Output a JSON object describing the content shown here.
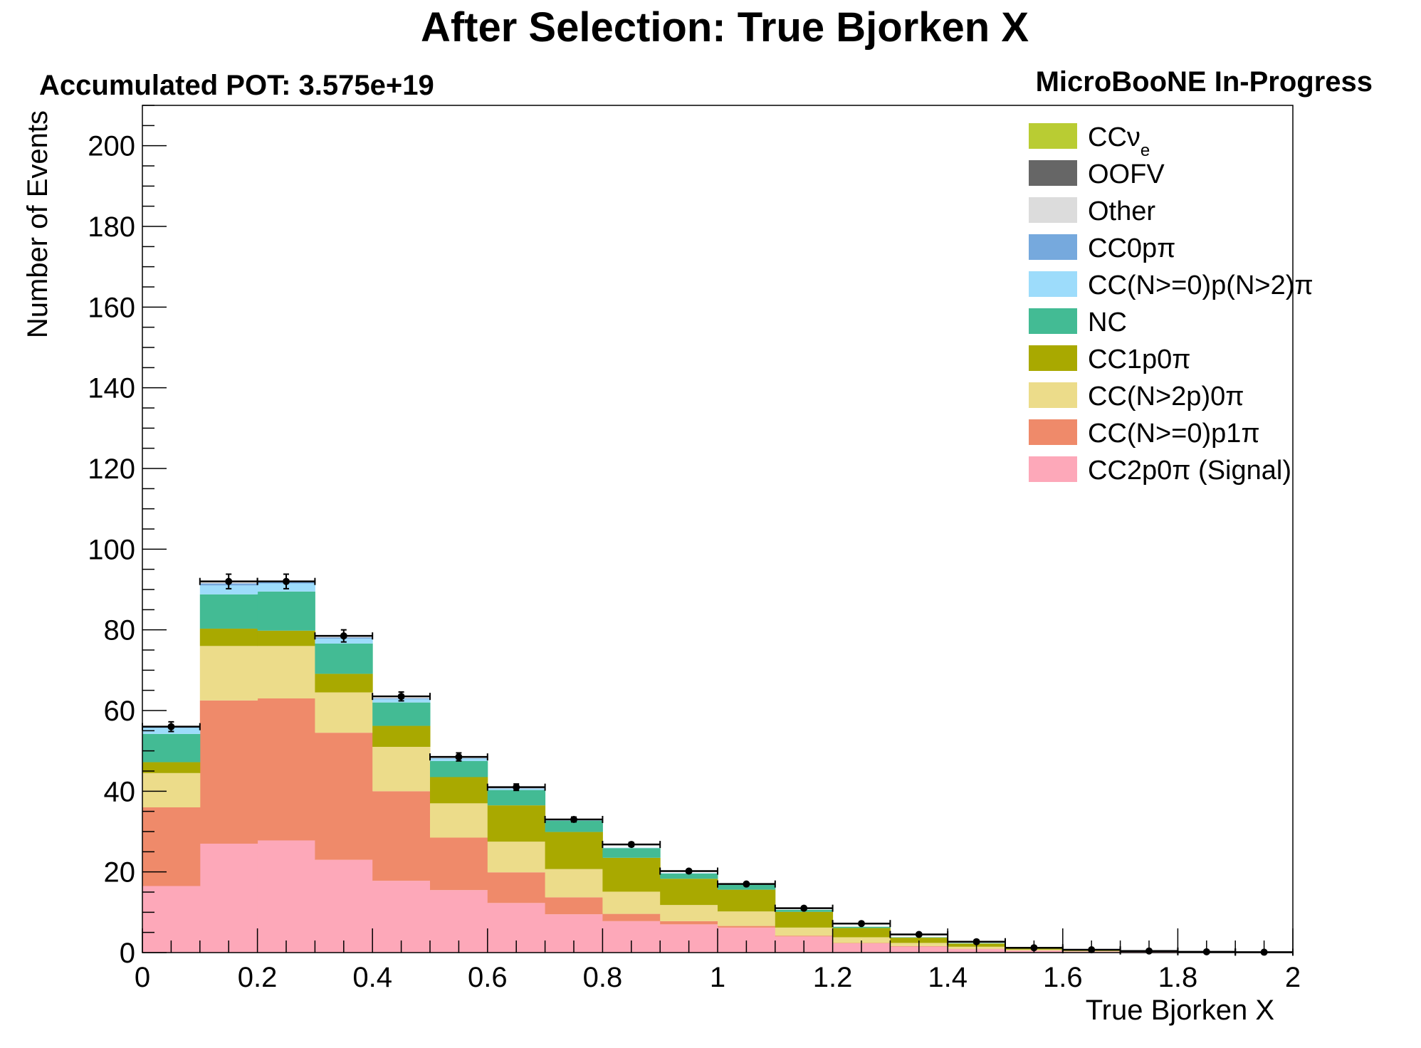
{
  "chart_data": {
    "type": "bar",
    "title": "After Selection: True Bjorken X",
    "subtitle_left": "Accumulated POT: 3.575e+19",
    "subtitle_right": "MicroBooNE In-Progress",
    "xlabel": "True Bjorken X",
    "ylabel": "Number of Events",
    "xlim": [
      0,
      2
    ],
    "ylim": [
      0,
      210
    ],
    "x_ticks": [
      "0",
      "0.2",
      "0.4",
      "0.6",
      "0.8",
      "1",
      "1.2",
      "1.4",
      "1.6",
      "1.8",
      "2"
    ],
    "y_ticks": [
      "0",
      "20",
      "40",
      "60",
      "80",
      "100",
      "120",
      "140",
      "160",
      "180",
      "200"
    ],
    "bin_edges": [
      0,
      0.1,
      0.2,
      0.3,
      0.4,
      0.5,
      0.6,
      0.7,
      0.8,
      0.9,
      1.0,
      1.1,
      1.2,
      1.3,
      1.4,
      1.5,
      1.6,
      1.7,
      1.8,
      1.9,
      2.0
    ],
    "stacked": true,
    "legend_placement": "top-right",
    "grid": false,
    "series": [
      {
        "name": "CC2p0π (Signal)",
        "color": "#fda8b9",
        "values": [
          16.5,
          27,
          27.8,
          23,
          17.8,
          15.5,
          12.3,
          9.5,
          7.8,
          7,
          6.2,
          4,
          2.3,
          1.5,
          0.9,
          0.5,
          0.3,
          0.2,
          0.1,
          0.05
        ]
      },
      {
        "name": "CC(N>=0)p1π",
        "color": "#ef8a6a",
        "values": [
          19.5,
          35.5,
          35.2,
          31.5,
          22.2,
          13,
          7.6,
          4.2,
          1.8,
          0.8,
          0.4,
          0.2,
          0.1,
          0.1,
          0.05,
          0.05,
          0,
          0,
          0,
          0
        ]
      },
      {
        "name": "CC(N>2p)0π",
        "color": "#ecdc8a",
        "values": [
          8.5,
          13.5,
          13,
          10,
          11,
          8.5,
          7.6,
          7,
          5.5,
          4,
          3.6,
          2,
          1.4,
          0.8,
          0.5,
          0.2,
          0.1,
          0.1,
          0,
          0
        ]
      },
      {
        "name": "CC1p0π",
        "color": "#a9a900",
        "values": [
          2.7,
          4.3,
          3.8,
          4.6,
          5.2,
          6.5,
          9,
          9.2,
          8.4,
          6.5,
          5.4,
          3.9,
          2.3,
          1.3,
          0.8,
          0.4,
          0.2,
          0.1,
          0.05,
          0
        ]
      },
      {
        "name": "NC",
        "color": "#43bb94",
        "values": [
          7,
          8.5,
          9.7,
          7.5,
          5.8,
          4,
          3.8,
          2.8,
          2.4,
          1.3,
          1.2,
          0.5,
          0.3,
          0.1,
          0.1,
          0.05,
          0,
          0,
          0,
          0
        ]
      },
      {
        "name": "CC(N>=0)p(N>2)π",
        "color": "#9ddcfb",
        "values": [
          1.5,
          2.2,
          2,
          1.2,
          0.8,
          0.6,
          0.3,
          0.2,
          0.1,
          0.1,
          0,
          0,
          0,
          0,
          0,
          0,
          0,
          0,
          0,
          0
        ]
      },
      {
        "name": "CC0pπ",
        "color": "#76a9dd",
        "values": [
          0.2,
          0.5,
          0.4,
          0.3,
          0.2,
          0.1,
          0.1,
          0,
          0,
          0,
          0,
          0,
          0,
          0,
          0,
          0,
          0,
          0,
          0,
          0
        ]
      },
      {
        "name": "Other",
        "color": "#dcdcdc",
        "values": [
          0.1,
          0.2,
          0.2,
          0.1,
          0.1,
          0.1,
          0.1,
          0.1,
          0,
          0,
          0,
          0,
          0,
          0,
          0,
          0,
          0,
          0,
          0,
          0
        ]
      },
      {
        "name": "OOFV",
        "color": "#666666",
        "values": [
          0,
          0,
          0,
          0,
          0,
          0,
          0,
          0,
          0,
          0,
          0,
          0,
          0,
          0,
          0,
          0,
          0,
          0,
          0,
          0
        ]
      },
      {
        "name": "CCν",
        "name_subscript": "e",
        "color": "#b9cc33",
        "values": [
          0,
          0,
          0,
          0,
          0,
          0,
          0,
          0,
          0,
          0,
          0,
          0,
          0,
          0,
          0,
          0,
          0,
          0,
          0,
          0
        ]
      }
    ],
    "totals": {
      "values": [
        56,
        92,
        92,
        78.5,
        63.5,
        48.5,
        41,
        33,
        26.8,
        20.2,
        17,
        11,
        7.2,
        4.5,
        2.7,
        1.2,
        0.7,
        0.4,
        0.2,
        0.1
      ],
      "errors": [
        1.2,
        1.8,
        1.8,
        1.5,
        1.1,
        1.0,
        0.8,
        0.6,
        0.5,
        0.4,
        0.3,
        0.2,
        0.15,
        0.1,
        0.08,
        0.05,
        0.03,
        0.02,
        0.01,
        0.01
      ]
    }
  }
}
